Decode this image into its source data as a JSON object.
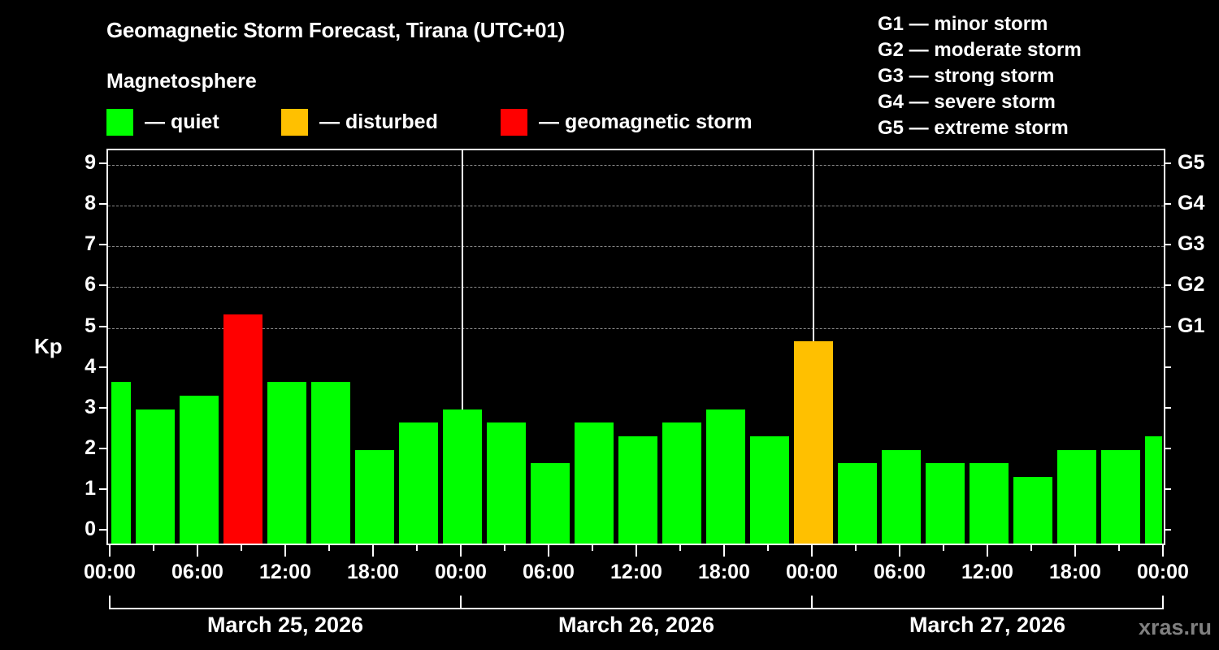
{
  "header": {
    "title": "Geomagnetic Storm Forecast, Tirana (UTC+01)",
    "subtitle": "Magnetosphere"
  },
  "legend": [
    {
      "label": "— quiet",
      "color": "#00ff00"
    },
    {
      "label": "— disturbed",
      "color": "#ffc000"
    },
    {
      "label": "— geomagnetic storm",
      "color": "#ff0000"
    }
  ],
  "storm_scale": [
    "G1 — minor storm",
    "G2 — moderate storm",
    "G3 — strong storm",
    "G4 — severe storm",
    "G5 — extreme storm"
  ],
  "axes": {
    "ylabel": "Kp",
    "yticks": [
      "0",
      "1",
      "2",
      "3",
      "4",
      "5",
      "6",
      "7",
      "8",
      "9"
    ],
    "right_ticks": [
      "G1",
      "G2",
      "G3",
      "G4",
      "G5"
    ],
    "xticks": [
      "00:00",
      "06:00",
      "12:00",
      "18:00",
      "00:00",
      "06:00",
      "12:00",
      "18:00",
      "00:00",
      "06:00",
      "12:00",
      "18:00",
      "00:00"
    ],
    "dates": [
      "March 25, 2026",
      "March 26, 2026",
      "March 27, 2026"
    ]
  },
  "watermark": "xras.ru",
  "chart_data": {
    "type": "bar",
    "title": "Geomagnetic Storm Forecast, Tirana (UTC+01)",
    "subtitle": "Magnetosphere",
    "xlabel": "",
    "ylabel": "Kp",
    "ylim": [
      0,
      9
    ],
    "grid": true,
    "interval_hours": 3,
    "categories": [
      "Mar 25 00:00",
      "Mar 25 03:00",
      "Mar 25 06:00",
      "Mar 25 09:00",
      "Mar 25 12:00",
      "Mar 25 15:00",
      "Mar 25 18:00",
      "Mar 25 21:00",
      "Mar 26 00:00",
      "Mar 26 03:00",
      "Mar 26 06:00",
      "Mar 26 09:00",
      "Mar 26 12:00",
      "Mar 26 15:00",
      "Mar 26 18:00",
      "Mar 26 21:00",
      "Mar 27 00:00",
      "Mar 27 03:00",
      "Mar 27 06:00",
      "Mar 27 09:00",
      "Mar 27 12:00",
      "Mar 27 15:00",
      "Mar 27 18:00",
      "Mar 27 21:00",
      "Mar 28 00:00"
    ],
    "values": [
      3.67,
      3.0,
      3.33,
      5.33,
      3.67,
      3.67,
      2.0,
      2.67,
      3.0,
      2.67,
      1.67,
      2.67,
      2.33,
      2.67,
      3.0,
      2.33,
      4.67,
      1.67,
      2.0,
      1.67,
      1.67,
      1.33,
      2.0,
      2.0,
      2.33
    ],
    "status": [
      "quiet",
      "quiet",
      "quiet",
      "storm",
      "quiet",
      "quiet",
      "quiet",
      "quiet",
      "quiet",
      "quiet",
      "quiet",
      "quiet",
      "quiet",
      "quiet",
      "quiet",
      "quiet",
      "disturbed",
      "quiet",
      "quiet",
      "quiet",
      "quiet",
      "quiet",
      "quiet",
      "quiet",
      "quiet"
    ],
    "status_colors": {
      "quiet": "#00ff00",
      "disturbed": "#ffc000",
      "storm": "#ff0000"
    },
    "legend": [
      "quiet",
      "disturbed",
      "geomagnetic storm"
    ],
    "right_axis": {
      "G1": 5,
      "G2": 6,
      "G3": 7,
      "G4": 8,
      "G5": 9
    },
    "day_labels": [
      "March 25, 2026",
      "March 26, 2026",
      "March 27, 2026"
    ]
  }
}
